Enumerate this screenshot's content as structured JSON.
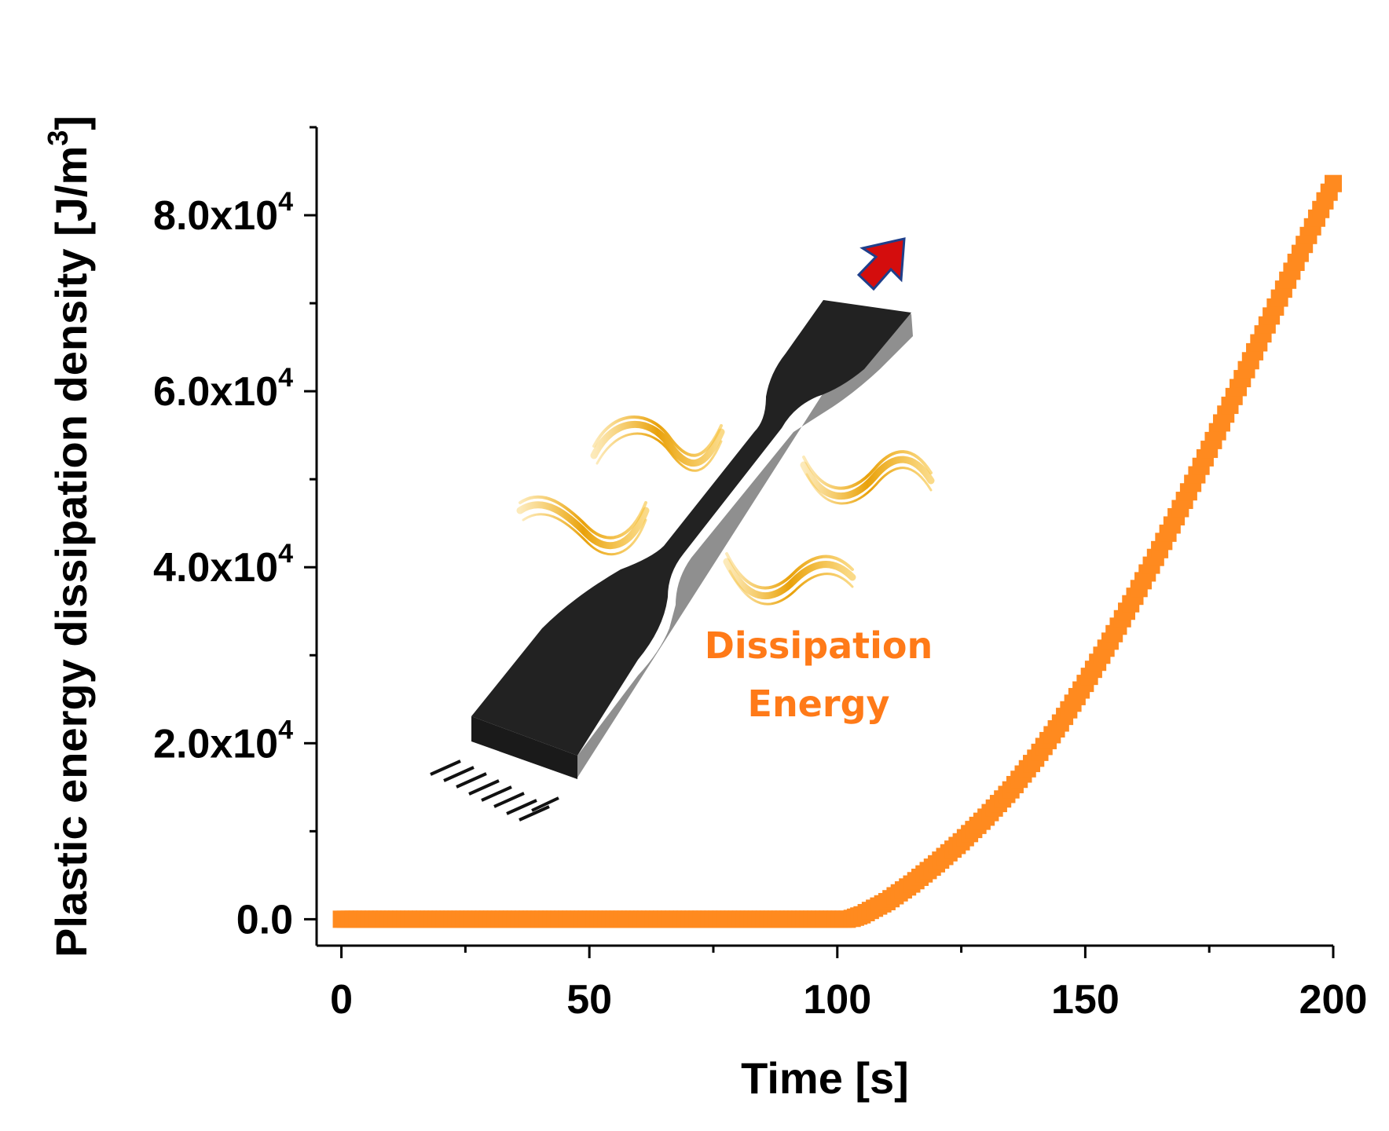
{
  "chart_data": {
    "type": "scatter",
    "xlabel": "Time [s]",
    "ylabel": "Plastic energy dissipation density [J/m",
    "ylabel_sup": "3",
    "ylabel_close": "]",
    "xlim": [
      -5,
      200
    ],
    "ylim": [
      -3000,
      90000
    ],
    "x_ticks": [
      {
        "value": 0,
        "label": "0"
      },
      {
        "value": 50,
        "label": "50"
      },
      {
        "value": 100,
        "label": "100"
      },
      {
        "value": 150,
        "label": "150"
      },
      {
        "value": 200,
        "label": "200"
      }
    ],
    "x_minor_ticks": [
      25,
      75,
      125,
      175
    ],
    "y_ticks": [
      {
        "value": 0,
        "label": "0.0",
        "sup": ""
      },
      {
        "value": 20000,
        "label": "2.0x10",
        "sup": "4"
      },
      {
        "value": 40000,
        "label": "4.0x10",
        "sup": "4"
      },
      {
        "value": 60000,
        "label": "6.0x10",
        "sup": "4"
      },
      {
        "value": 80000,
        "label": "8.0x10",
        "sup": "4"
      }
    ],
    "y_minor_ticks": [
      10000,
      30000,
      50000,
      70000,
      90000
    ],
    "series": [
      {
        "color": "#ff8a1f",
        "points": [
          [
            0,
            0
          ],
          [
            102,
            0
          ],
          [
            103,
            100
          ],
          [
            105,
            500
          ],
          [
            110,
            2000
          ],
          [
            115,
            4000
          ],
          [
            120,
            6300
          ],
          [
            125,
            8800
          ],
          [
            130,
            11600
          ],
          [
            135,
            14700
          ],
          [
            140,
            18300
          ],
          [
            145,
            22300
          ],
          [
            150,
            26800
          ],
          [
            155,
            31600
          ],
          [
            160,
            36700
          ],
          [
            165,
            42000
          ],
          [
            170,
            47600
          ],
          [
            175,
            53400
          ],
          [
            180,
            59400
          ],
          [
            185,
            65500
          ],
          [
            190,
            71600
          ],
          [
            195,
            77700
          ],
          [
            200,
            83600
          ]
        ]
      }
    ],
    "annotations": [
      {
        "line1": "Dissipation",
        "line2": "Energy",
        "color": "#ff7a18"
      }
    ],
    "inset": "dogbone tensile specimen with red pull arrow, fixed-end hatch and golden heat waves"
  }
}
